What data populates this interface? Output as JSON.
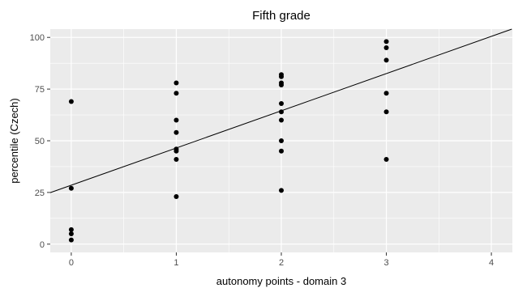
{
  "chart_data": {
    "type": "scatter",
    "title": "Fifth grade",
    "xlabel": "autonomy points - domain 3",
    "ylabel": "percentile (Czech)",
    "xlim": [
      -0.2,
      4.2
    ],
    "ylim": [
      -4,
      104
    ],
    "x_ticks": [
      0,
      1,
      2,
      3,
      4
    ],
    "y_ticks": [
      0,
      25,
      50,
      75,
      100
    ],
    "grid": true,
    "panel_color": "#ebebeb",
    "grid_color": "#ffffff",
    "point_color": "#000000",
    "points": [
      {
        "x": 0,
        "y": 69
      },
      {
        "x": 0,
        "y": 27
      },
      {
        "x": 0,
        "y": 7
      },
      {
        "x": 0,
        "y": 5
      },
      {
        "x": 0,
        "y": 2
      },
      {
        "x": 1,
        "y": 78
      },
      {
        "x": 1,
        "y": 73
      },
      {
        "x": 1,
        "y": 60
      },
      {
        "x": 1,
        "y": 54
      },
      {
        "x": 1,
        "y": 46
      },
      {
        "x": 1,
        "y": 45
      },
      {
        "x": 1,
        "y": 41
      },
      {
        "x": 1,
        "y": 23
      },
      {
        "x": 2,
        "y": 82
      },
      {
        "x": 2,
        "y": 81
      },
      {
        "x": 2,
        "y": 78
      },
      {
        "x": 2,
        "y": 77
      },
      {
        "x": 2,
        "y": 68
      },
      {
        "x": 2,
        "y": 64
      },
      {
        "x": 2,
        "y": 60
      },
      {
        "x": 2,
        "y": 50
      },
      {
        "x": 2,
        "y": 45
      },
      {
        "x": 2,
        "y": 26
      },
      {
        "x": 3,
        "y": 98
      },
      {
        "x": 3,
        "y": 95
      },
      {
        "x": 3,
        "y": 89
      },
      {
        "x": 3,
        "y": 73
      },
      {
        "x": 3,
        "y": 64
      },
      {
        "x": 3,
        "y": 41
      }
    ],
    "trend_line": {
      "intercept": 28.5,
      "slope": 18
    }
  }
}
